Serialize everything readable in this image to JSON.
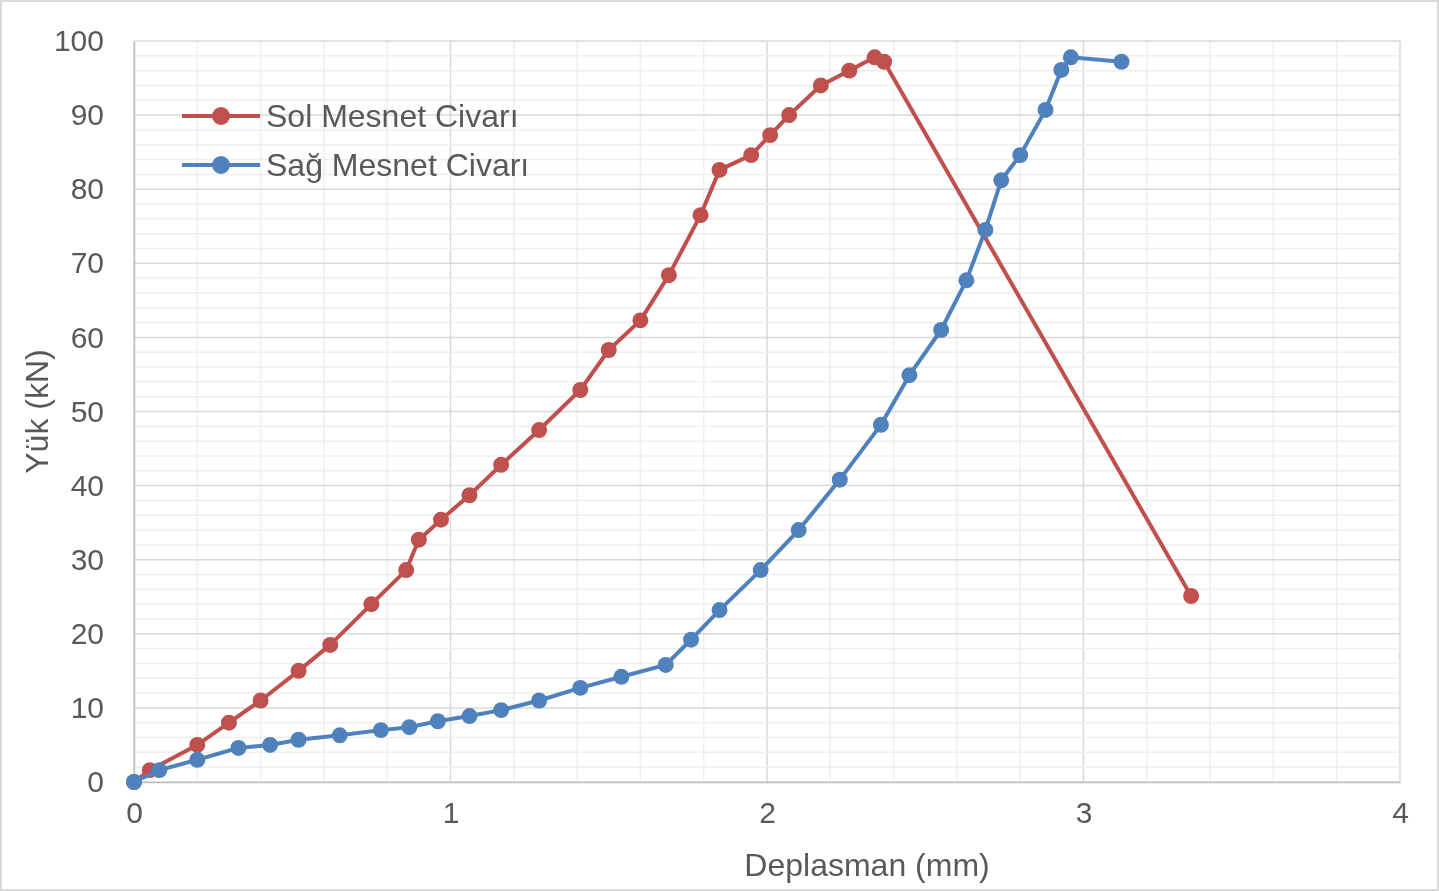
{
  "chart_data": {
    "type": "line",
    "xlabel": "Deplasman (mm)",
    "ylabel": "Yük (kN)",
    "xlim": [
      0,
      4
    ],
    "ylim": [
      0,
      100
    ],
    "xticks": [
      0,
      {
        "value": 0.2,
        "label": null
      },
      {
        "value": 0.4,
        "label": null
      },
      {
        "value": 0.6,
        "label": null
      },
      {
        "value": 0.8,
        "label": null
      },
      1,
      {
        "value": 1.2,
        "label": null
      },
      {
        "value": 1.4,
        "label": null
      },
      {
        "value": 1.6,
        "label": null
      },
      {
        "value": 1.8,
        "label": null
      },
      2,
      {
        "value": 2.2,
        "label": null
      },
      {
        "value": 2.4,
        "label": null
      },
      {
        "value": 2.6,
        "label": null
      },
      {
        "value": 2.8,
        "label": null
      },
      3,
      {
        "value": 3.2,
        "label": null
      },
      {
        "value": 3.4,
        "label": null
      },
      {
        "value": 3.6,
        "label": null
      },
      {
        "value": 3.8,
        "label": null
      },
      4
    ],
    "yticks": [
      0,
      {
        "value": 2,
        "label": null
      },
      {
        "value": 4,
        "label": null
      },
      {
        "value": 6,
        "label": null
      },
      {
        "value": 8,
        "label": null
      },
      10,
      {
        "value": 12,
        "label": null
      },
      {
        "value": 14,
        "label": null
      },
      {
        "value": 16,
        "label": null
      },
      {
        "value": 18,
        "label": null
      },
      20,
      {
        "value": 22,
        "label": null
      },
      {
        "value": 24,
        "label": null
      },
      {
        "value": 26,
        "label": null
      },
      {
        "value": 28,
        "label": null
      },
      30,
      {
        "value": 32,
        "label": null
      },
      {
        "value": 34,
        "label": null
      },
      {
        "value": 36,
        "label": null
      },
      {
        "value": 38,
        "label": null
      },
      40,
      {
        "value": 42,
        "label": null
      },
      {
        "value": 44,
        "label": null
      },
      {
        "value": 46,
        "label": null
      },
      {
        "value": 48,
        "label": null
      },
      50,
      {
        "value": 52,
        "label": null
      },
      {
        "value": 54,
        "label": null
      },
      {
        "value": 56,
        "label": null
      },
      {
        "value": 58,
        "label": null
      },
      60,
      {
        "value": 62,
        "label": null
      },
      {
        "value": 64,
        "label": null
      },
      {
        "value": 66,
        "label": null
      },
      {
        "value": 68,
        "label": null
      },
      70,
      {
        "value": 72,
        "label": null
      },
      {
        "value": 74,
        "label": null
      },
      {
        "value": 76,
        "label": null
      },
      {
        "value": 78,
        "label": null
      },
      80,
      {
        "value": 82,
        "label": null
      },
      {
        "value": 84,
        "label": null
      },
      {
        "value": 86,
        "label": null
      },
      {
        "value": 88,
        "label": null
      },
      90,
      {
        "value": 92,
        "label": null
      },
      {
        "value": 94,
        "label": null
      },
      {
        "value": 96,
        "label": null
      },
      {
        "value": 98,
        "label": null
      },
      100
    ],
    "grid": true,
    "legend": "top left",
    "marker": "circle",
    "line_style": "solid",
    "series": [
      {
        "name": "Sol Mesnet Civarı",
        "color": "#c0504d",
        "x": [
          0,
          0.05,
          0.2,
          0.3,
          0.4,
          0.52,
          0.62,
          0.75,
          0.86,
          0.9,
          0.97,
          1.06,
          1.16,
          1.28,
          1.41,
          1.5,
          1.6,
          1.69,
          1.79,
          1.85,
          1.95,
          2.01,
          2.07,
          2.17,
          2.26,
          2.34,
          2.37,
          3.34
        ],
        "values": [
          0,
          1.6,
          5,
          8,
          11,
          15,
          18.5,
          24,
          28.6,
          32.7,
          35.4,
          38.7,
          42.8,
          47.5,
          52.9,
          58.3,
          62.3,
          68.4,
          76.5,
          82.6,
          84.6,
          87.3,
          90,
          94,
          96,
          97.8,
          97.2,
          25.1
        ]
      },
      {
        "name": "Sağ Mesnet Civarı",
        "color": "#4f81bd",
        "x": [
          0,
          0.08,
          0.2,
          0.33,
          0.43,
          0.52,
          0.65,
          0.78,
          0.87,
          0.96,
          1.06,
          1.16,
          1.28,
          1.41,
          1.54,
          1.68,
          1.76,
          1.85,
          1.98,
          2.1,
          2.23,
          2.36,
          2.45,
          2.55,
          2.63,
          2.69,
          2.74,
          2.8,
          2.88,
          2.93,
          2.96,
          3.12
        ],
        "values": [
          0,
          1.6,
          3,
          4.6,
          5,
          5.7,
          6.3,
          7,
          7.4,
          8.2,
          8.9,
          9.7,
          11,
          12.7,
          14.2,
          15.8,
          19.2,
          23.2,
          28.6,
          34,
          40.8,
          48.2,
          54.9,
          61,
          67.7,
          74.5,
          81.2,
          84.6,
          90.7,
          96.1,
          97.8,
          97.2
        ]
      }
    ]
  }
}
